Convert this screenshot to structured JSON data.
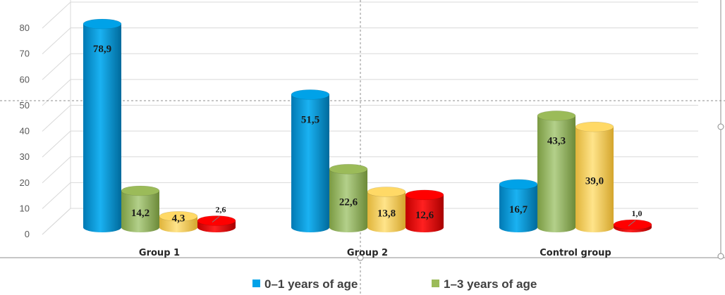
{
  "chart_data": {
    "type": "bar",
    "style": "3d-cylinder",
    "categories": [
      "Group 1",
      "Group 2",
      "Control group"
    ],
    "series": [
      {
        "name": "0–1 years of age",
        "values": [
          78.9,
          51.5,
          16.7
        ],
        "color": "#00a2e8",
        "labels": [
          "78,9",
          "51,5",
          "16,7"
        ]
      },
      {
        "name": "1–3 years of age",
        "values": [
          14.2,
          22.6,
          43.3
        ],
        "color": "#9bbb59",
        "labels": [
          "14,2",
          "22,6",
          "43,3"
        ]
      },
      {
        "name": "",
        "values": [
          4.3,
          13.8,
          39.0
        ],
        "color": "#ffd966",
        "labels": [
          "4,3",
          "13,8",
          "39,0"
        ]
      },
      {
        "name": "",
        "values": [
          2.6,
          12.6,
          1.0
        ],
        "color": "#ff0000",
        "labels": [
          "2,6",
          "12,6",
          "1,0"
        ]
      }
    ],
    "yticks": [
      "0",
      "10",
      "20",
      "30",
      "40",
      "50",
      "60",
      "70",
      "80"
    ],
    "ylim": [
      0,
      80
    ],
    "grid": true,
    "legend_position": "bottom"
  }
}
